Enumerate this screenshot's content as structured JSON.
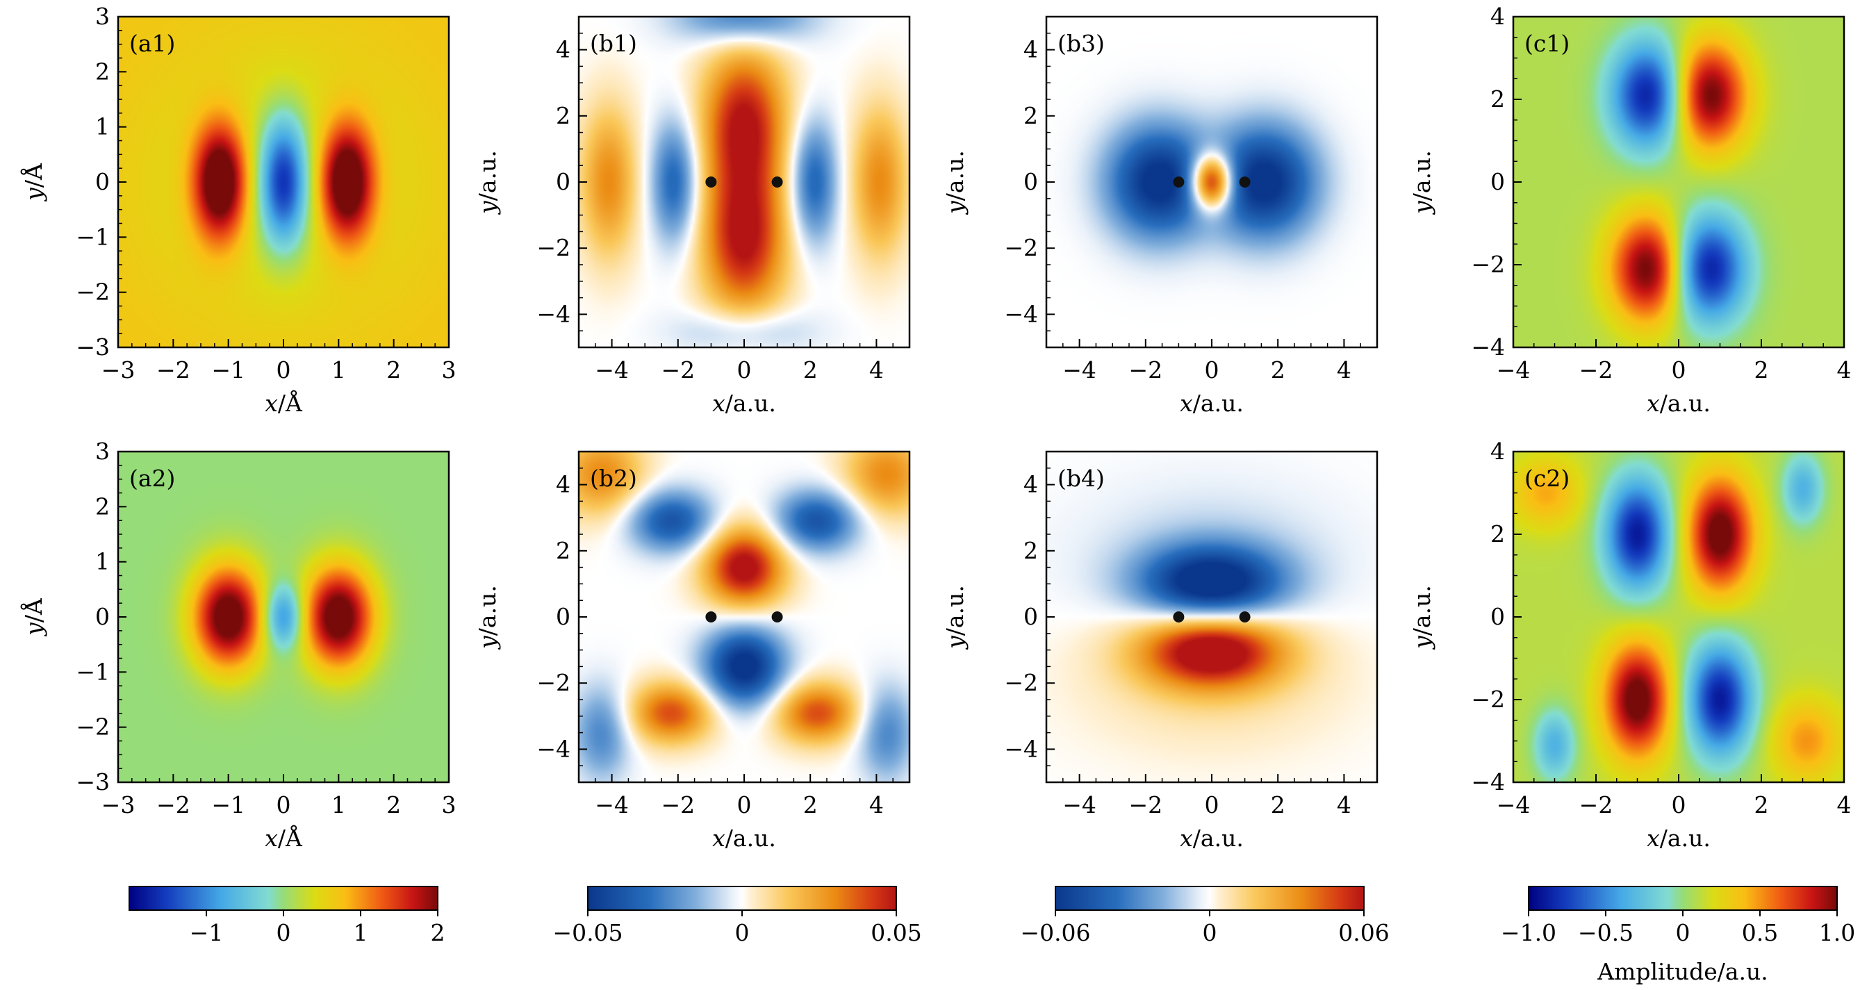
{
  "chart_data": [
    {
      "id": "a1",
      "type": "heatmap",
      "tag": "(a1)",
      "xlabel": {
        "var": "x",
        "unit": "/Å"
      },
      "ylabel": {
        "var": "y",
        "unit": "/Å"
      },
      "xlim": [
        -3,
        3
      ],
      "ylim": [
        -3,
        3
      ],
      "xticks": [
        -3,
        -2,
        -1,
        0,
        1,
        2,
        3
      ],
      "yticks": [
        -3,
        -2,
        -1,
        0,
        1,
        2,
        3
      ],
      "colormap": "jet",
      "clim": [
        -2,
        2
      ],
      "background": 0.35,
      "blobs": [
        {
          "x": -1.15,
          "y": 0,
          "sx": 0.35,
          "sy": 0.75,
          "amp": 2.2
        },
        {
          "x": 0,
          "y": 0,
          "sx": 0.3,
          "sy": 0.8,
          "amp": -1.8
        },
        {
          "x": 1.15,
          "y": 0,
          "sx": 0.35,
          "sy": 0.75,
          "amp": 2.2
        },
        {
          "x": 0,
          "y": 0,
          "sx": 1.6,
          "sy": 1.6,
          "amp": -0.5
        }
      ]
    },
    {
      "id": "b1",
      "type": "heatmap",
      "tag": "(b1)",
      "xlabel": {
        "var": "x",
        "unit": "/a.u."
      },
      "ylabel": {
        "var": "y",
        "unit": "/a.u."
      },
      "xlim": [
        -5,
        5
      ],
      "ylim": [
        -5,
        5
      ],
      "xticks": [
        -4,
        -2,
        0,
        2,
        4
      ],
      "yticks": [
        -4,
        -2,
        0,
        2,
        4
      ],
      "colormap": "diverging",
      "clim": [
        -0.05,
        0.05
      ],
      "background": 0,
      "nuclei": [
        [
          -1,
          0
        ],
        [
          1,
          0
        ]
      ],
      "blobs": [
        {
          "x": 0,
          "y": 1.8,
          "sx": 0.9,
          "sy": 1.6,
          "amp": 0.05
        },
        {
          "x": 0,
          "y": -1.8,
          "sx": 0.9,
          "sy": 1.6,
          "amp": 0.05
        },
        {
          "x": -2.1,
          "y": 0,
          "sx": 0.5,
          "sy": 1.3,
          "amp": -0.035
        },
        {
          "x": 2.1,
          "y": 0,
          "sx": 0.5,
          "sy": 1.3,
          "amp": -0.035
        },
        {
          "x": -4.1,
          "y": 0,
          "sx": 0.6,
          "sy": 1.6,
          "amp": 0.03
        },
        {
          "x": 4.1,
          "y": 0,
          "sx": 0.6,
          "sy": 1.6,
          "amp": 0.03
        },
        {
          "x": 0,
          "y": 5,
          "sx": 1.4,
          "sy": 0.6,
          "amp": -0.03
        },
        {
          "x": 0,
          "y": -4.5,
          "sx": 1.4,
          "sy": 0.5,
          "amp": -0.015
        }
      ]
    },
    {
      "id": "b3",
      "type": "heatmap",
      "tag": "(b3)",
      "xlabel": {
        "var": "x",
        "unit": "/a.u."
      },
      "ylabel": {
        "var": "y",
        "unit": "/a.u."
      },
      "xlim": [
        -5,
        5
      ],
      "ylim": [
        -5,
        5
      ],
      "xticks": [
        -4,
        -2,
        0,
        2,
        4
      ],
      "yticks": [
        -4,
        -2,
        0,
        2,
        4
      ],
      "colormap": "diverging",
      "clim": [
        -0.06,
        0.06
      ],
      "background": 0,
      "nuclei": [
        [
          -1,
          0
        ],
        [
          1,
          0
        ]
      ],
      "blobs": [
        {
          "x": -1.6,
          "y": 0,
          "sx": 1.1,
          "sy": 1.2,
          "amp": -0.065
        },
        {
          "x": 1.6,
          "y": 0,
          "sx": 1.1,
          "sy": 1.2,
          "amp": -0.065
        },
        {
          "x": 0,
          "y": 0,
          "sx": 0.45,
          "sy": 0.6,
          "amp": 0.09
        }
      ]
    },
    {
      "id": "c1",
      "type": "heatmap",
      "tag": "(c1)",
      "xlabel": {
        "var": "x",
        "unit": "/a.u."
      },
      "ylabel": {
        "var": "y",
        "unit": "/a.u."
      },
      "xlim": [
        -4,
        4
      ],
      "ylim": [
        -4,
        4
      ],
      "xticks": [
        -4,
        -2,
        0,
        2,
        4
      ],
      "yticks": [
        -4,
        -2,
        0,
        2,
        4
      ],
      "colormap": "jet",
      "clim": [
        -1,
        1
      ],
      "background": 0.08,
      "blobs": [
        {
          "x": -0.7,
          "y": 2.1,
          "sx": 0.65,
          "sy": 0.9,
          "amp": -1.0
        },
        {
          "x": 0.7,
          "y": 2.1,
          "sx": 0.65,
          "sy": 0.9,
          "amp": 1.0
        },
        {
          "x": -0.7,
          "y": -2.1,
          "sx": 0.65,
          "sy": 0.9,
          "amp": 1.0
        },
        {
          "x": 0.7,
          "y": -2.1,
          "sx": 0.65,
          "sy": 0.9,
          "amp": -1.0
        }
      ]
    },
    {
      "id": "a2",
      "type": "heatmap",
      "tag": "(a2)",
      "xlabel": {
        "var": "x",
        "unit": "/Å"
      },
      "ylabel": {
        "var": "y",
        "unit": "/Å"
      },
      "xlim": [
        -3,
        3
      ],
      "ylim": [
        -3,
        3
      ],
      "xticks": [
        -3,
        -2,
        -1,
        0,
        1,
        2,
        3
      ],
      "yticks": [
        -3,
        -2,
        -1,
        0,
        1,
        2,
        3
      ],
      "colormap": "jet",
      "clim": [
        -2,
        2
      ],
      "background": 0,
      "blobs": [
        {
          "x": -1.0,
          "y": 0,
          "sx": 0.45,
          "sy": 0.65,
          "amp": 2.3
        },
        {
          "x": 1.0,
          "y": 0,
          "sx": 0.45,
          "sy": 0.65,
          "amp": 2.3
        },
        {
          "x": 0,
          "y": 0,
          "sx": 0.25,
          "sy": 0.4,
          "amp": -1.2
        }
      ]
    },
    {
      "id": "b2",
      "type": "heatmap",
      "tag": "(b2)",
      "xlabel": {
        "var": "x",
        "unit": "/a.u."
      },
      "ylabel": {
        "var": "y",
        "unit": "/a.u."
      },
      "xlim": [
        -5,
        5
      ],
      "ylim": [
        -5,
        5
      ],
      "xticks": [
        -4,
        -2,
        0,
        2,
        4
      ],
      "yticks": [
        -4,
        -2,
        0,
        2,
        4
      ],
      "colormap": "diverging",
      "clim": [
        -0.05,
        0.05
      ],
      "background": 0,
      "nuclei": [
        [
          -1,
          0
        ],
        [
          1,
          0
        ]
      ],
      "blobs": [
        {
          "x": 0,
          "y": 1.5,
          "sx": 0.85,
          "sy": 0.85,
          "amp": 0.055
        },
        {
          "x": 0,
          "y": -1.5,
          "sx": 0.85,
          "sy": 0.85,
          "amp": -0.055
        },
        {
          "x": -2.2,
          "y": 2.9,
          "sx": 0.9,
          "sy": 0.65,
          "amp": -0.04
        },
        {
          "x": 2.2,
          "y": 2.9,
          "sx": 0.9,
          "sy": 0.65,
          "amp": -0.04
        },
        {
          "x": -2.2,
          "y": -2.9,
          "sx": 0.9,
          "sy": 0.65,
          "amp": 0.04
        },
        {
          "x": 2.2,
          "y": -2.9,
          "sx": 0.9,
          "sy": 0.65,
          "amp": 0.04
        },
        {
          "x": -4.3,
          "y": 4.3,
          "sx": 0.9,
          "sy": 0.9,
          "amp": 0.03
        },
        {
          "x": 4.3,
          "y": 4.3,
          "sx": 0.9,
          "sy": 0.9,
          "amp": 0.03
        },
        {
          "x": -4.3,
          "y": -3.5,
          "sx": 0.6,
          "sy": 1.0,
          "amp": -0.025
        },
        {
          "x": 4.3,
          "y": -3.5,
          "sx": 0.6,
          "sy": 1.0,
          "amp": -0.025
        }
      ]
    },
    {
      "id": "b4",
      "type": "heatmap",
      "tag": "(b4)",
      "xlabel": {
        "var": "x",
        "unit": "/a.u."
      },
      "ylabel": {
        "var": "y",
        "unit": "/a.u."
      },
      "xlim": [
        -5,
        5
      ],
      "ylim": [
        -5,
        5
      ],
      "xticks": [
        -4,
        -2,
        0,
        2,
        4
      ],
      "yticks": [
        -4,
        -2,
        0,
        2,
        4
      ],
      "colormap": "diverging",
      "clim": [
        -0.06,
        0.06
      ],
      "background": 0,
      "nuclei": [
        [
          -1,
          0
        ],
        [
          1,
          0
        ]
      ],
      "blobs": [
        {
          "x": 0,
          "y": 1.0,
          "sx": 1.5,
          "sy": 0.8,
          "amp": -0.07
        },
        {
          "x": 0,
          "y": -1.0,
          "sx": 1.5,
          "sy": 0.8,
          "amp": 0.07
        },
        {
          "x": 0,
          "y": 1.8,
          "sx": 2.8,
          "sy": 1.6,
          "amp": -0.01
        },
        {
          "x": 0,
          "y": -1.8,
          "sx": 2.8,
          "sy": 1.6,
          "amp": 0.01
        }
      ]
    },
    {
      "id": "c2",
      "type": "heatmap",
      "tag": "(c2)",
      "xlabel": {
        "var": "x",
        "unit": "/a.u."
      },
      "ylabel": {
        "var": "y",
        "unit": "/a.u."
      },
      "xlim": [
        -4,
        4
      ],
      "ylim": [
        -4,
        4
      ],
      "xticks": [
        -4,
        -2,
        0,
        2,
        4
      ],
      "yticks": [
        -4,
        -2,
        0,
        2,
        4
      ],
      "colormap": "jet",
      "clim": [
        -1,
        1
      ],
      "background": 0.1,
      "blobs": [
        {
          "x": -1.0,
          "y": 2.0,
          "sx": 0.55,
          "sy": 0.95,
          "amp": -1.0
        },
        {
          "x": 1.0,
          "y": 2.0,
          "sx": 0.55,
          "sy": 0.95,
          "amp": 1.0
        },
        {
          "x": -1.0,
          "y": -2.0,
          "sx": 0.55,
          "sy": 0.95,
          "amp": 1.0
        },
        {
          "x": 1.0,
          "y": -2.0,
          "sx": 0.55,
          "sy": 0.95,
          "amp": -1.0
        },
        {
          "x": -3.2,
          "y": 3.0,
          "sx": 0.6,
          "sy": 0.6,
          "amp": 0.35
        },
        {
          "x": 3.0,
          "y": 3.1,
          "sx": 0.35,
          "sy": 0.6,
          "amp": -0.45
        },
        {
          "x": -3.0,
          "y": -3.1,
          "sx": 0.35,
          "sy": 0.6,
          "amp": -0.45
        },
        {
          "x": 3.1,
          "y": -3.0,
          "sx": 0.6,
          "sy": 0.7,
          "amp": 0.4
        }
      ]
    }
  ],
  "colorbars": [
    {
      "id": "cb-a",
      "colormap": "jet",
      "range": [
        -2,
        2
      ],
      "ticks": [
        {
          "v": -1,
          "label": "−1"
        },
        {
          "v": 0,
          "label": "0"
        },
        {
          "v": 1,
          "label": "1"
        },
        {
          "v": 2,
          "label": "2"
        }
      ]
    },
    {
      "id": "cb-b12",
      "colormap": "diverging",
      "range": [
        -0.05,
        0.05
      ],
      "ticks": [
        {
          "v": -0.05,
          "label": "−0.05"
        },
        {
          "v": 0,
          "label": "0"
        },
        {
          "v": 0.05,
          "label": "0.05"
        }
      ]
    },
    {
      "id": "cb-b34",
      "colormap": "diverging",
      "range": [
        -0.06,
        0.06
      ],
      "ticks": [
        {
          "v": -0.06,
          "label": "−0.06"
        },
        {
          "v": 0,
          "label": "0"
        },
        {
          "v": 0.06,
          "label": "0.06"
        }
      ]
    },
    {
      "id": "cb-c",
      "colormap": "jet",
      "range": [
        -1,
        1
      ],
      "ticks": [
        {
          "v": -1,
          "label": "−1.0"
        },
        {
          "v": -0.5,
          "label": "−0.5"
        },
        {
          "v": 0,
          "label": "0"
        },
        {
          "v": 0.5,
          "label": "0.5"
        },
        {
          "v": 1,
          "label": "1.0"
        }
      ],
      "label": "Amplitude/a.u."
    }
  ],
  "colors": {
    "nucleus": "#111111",
    "frame": "#000000"
  }
}
